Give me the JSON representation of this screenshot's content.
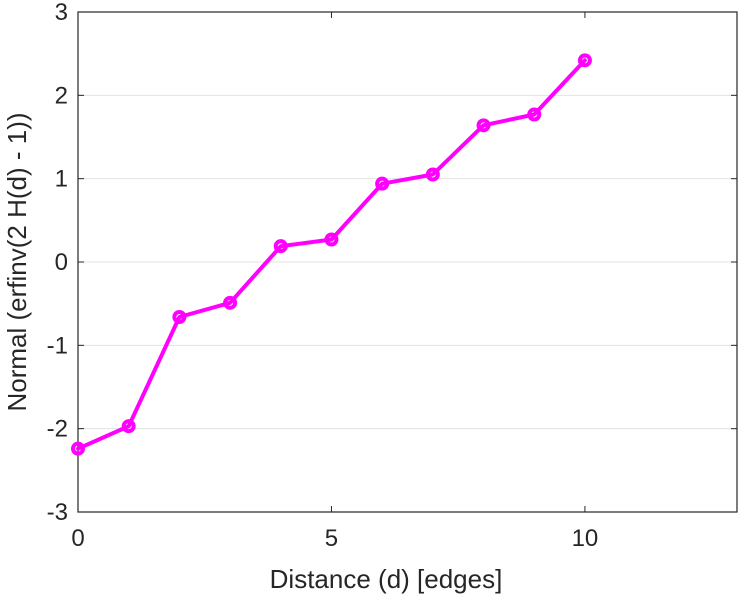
{
  "chart_data": {
    "type": "line",
    "title": "",
    "xlabel": "Distance (d) [edges]",
    "ylabel": "Normal (erfinv(2 H(d) - 1))",
    "xlim": [
      0,
      13
    ],
    "ylim": [
      -3,
      3
    ],
    "xticks": [
      0,
      5,
      10
    ],
    "yticks": [
      -3,
      -2,
      -1,
      0,
      1,
      2,
      3
    ],
    "grid": "horizontal",
    "legend": "none",
    "series": [
      {
        "color": "#ff00ff",
        "marker": "circle",
        "x": [
          0,
          1,
          2,
          3,
          4,
          5,
          6,
          7,
          8,
          9,
          10
        ],
        "y": [
          -2.24,
          -1.97,
          -0.66,
          -0.49,
          0.19,
          0.27,
          0.94,
          1.05,
          1.64,
          1.77,
          2.42
        ]
      }
    ]
  }
}
